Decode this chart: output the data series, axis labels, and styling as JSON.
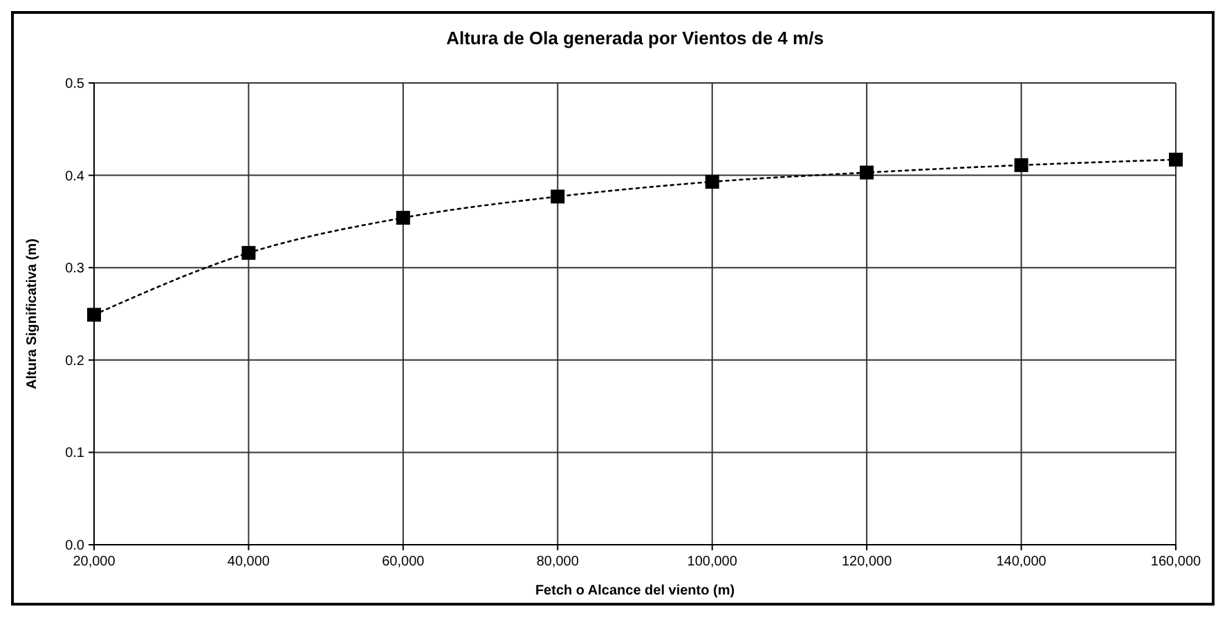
{
  "chart_data": {
    "type": "line",
    "title": "Altura de Ola generada por Vientos de 4 m/s",
    "xlabel": "Fetch o Alcance del viento (m)",
    "ylabel": "Altura Significativa (m)",
    "x": [
      20000,
      40000,
      60000,
      80000,
      100000,
      120000,
      140000,
      160000
    ],
    "series": [
      {
        "color": "#000000",
        "values": [
          0.249,
          0.316,
          0.354,
          0.377,
          0.393,
          0.403,
          0.411,
          0.417
        ]
      }
    ],
    "xlim": [
      20000,
      160000
    ],
    "xticks": [
      {
        "value": 20000,
        "label": "20,000"
      },
      {
        "value": 40000,
        "label": "40,000"
      },
      {
        "value": 60000,
        "label": "60,000"
      },
      {
        "value": 80000,
        "label": "80,000"
      },
      {
        "value": 100000,
        "label": "100,000"
      },
      {
        "value": 120000,
        "label": "120,000"
      },
      {
        "value": 140000,
        "label": "140,000"
      },
      {
        "value": 160000,
        "label": "160,000"
      }
    ],
    "ylim": [
      0,
      0.5
    ],
    "yticks": [
      {
        "value": 0,
        "label": "0.0"
      },
      {
        "value": 0.1,
        "label": "0.1"
      },
      {
        "value": 0.2,
        "label": "0.2"
      },
      {
        "value": 0.3,
        "label": "0.3"
      },
      {
        "value": 0.4,
        "label": "0.4"
      },
      {
        "value": 0.5,
        "label": "0.5"
      }
    ],
    "grid": true,
    "marker": "square",
    "line_style": "dotted"
  }
}
